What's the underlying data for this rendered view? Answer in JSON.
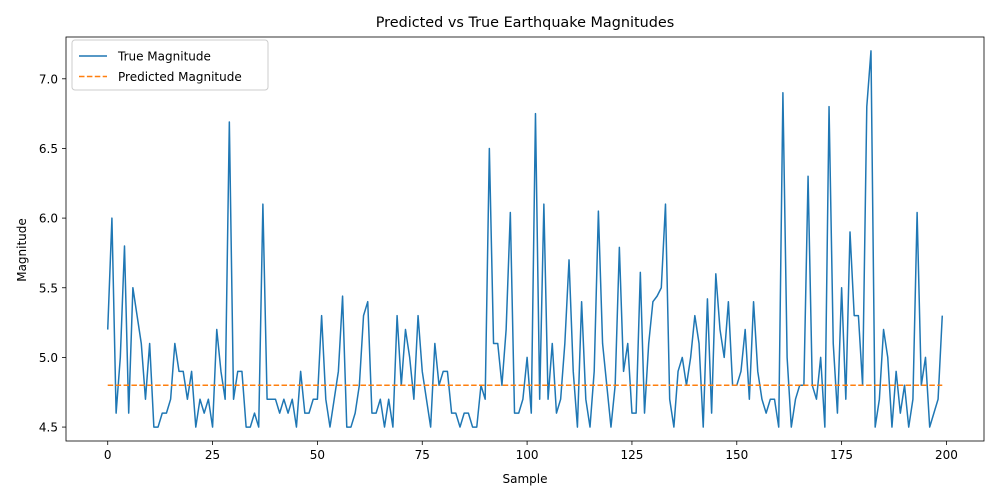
{
  "chart_data": {
    "type": "line",
    "title": "Predicted vs True Earthquake Magnitudes",
    "xlabel": "Sample",
    "ylabel": "Magnitude",
    "xlim": [
      -9.95,
      208.95
    ],
    "ylim": [
      4.4,
      7.3
    ],
    "xticks": [
      0,
      25,
      50,
      75,
      100,
      125,
      150,
      175,
      200
    ],
    "yticks": [
      4.5,
      5.0,
      5.5,
      6.0,
      6.5,
      7.0
    ],
    "xtick_labels": [
      "0",
      "25",
      "50",
      "75",
      "100",
      "125",
      "150",
      "175",
      "200"
    ],
    "ytick_labels": [
      "4.5",
      "5.0",
      "5.5",
      "6.0",
      "6.5",
      "7.0"
    ],
    "grid": false,
    "legend_position": "top-left",
    "series": [
      {
        "name": "True Magnitude",
        "color": "#1f77b4",
        "style": "solid",
        "values": [
          5.2,
          6.0,
          4.6,
          5.0,
          5.8,
          4.6,
          5.5,
          5.3,
          5.1,
          4.7,
          5.1,
          4.5,
          4.5,
          4.6,
          4.6,
          4.7,
          5.1,
          4.9,
          4.9,
          4.7,
          4.9,
          4.5,
          4.7,
          4.6,
          4.7,
          4.5,
          5.2,
          4.9,
          4.7,
          6.69,
          4.7,
          4.9,
          4.9,
          4.5,
          4.5,
          4.6,
          4.5,
          6.1,
          4.7,
          4.7,
          4.7,
          4.6,
          4.7,
          4.6,
          4.7,
          4.5,
          4.9,
          4.6,
          4.6,
          4.7,
          4.7,
          5.3,
          4.7,
          4.5,
          4.7,
          4.9,
          5.44,
          4.5,
          4.5,
          4.6,
          4.8,
          5.3,
          5.4,
          4.6,
          4.6,
          4.7,
          4.5,
          4.7,
          4.5,
          5.3,
          4.8,
          5.2,
          5.0,
          4.7,
          5.3,
          4.9,
          4.7,
          4.5,
          5.1,
          4.8,
          4.9,
          4.9,
          4.6,
          4.6,
          4.5,
          4.6,
          4.6,
          4.5,
          4.5,
          4.8,
          4.7,
          6.5,
          5.1,
          5.1,
          4.8,
          5.2,
          6.04,
          4.6,
          4.6,
          4.7,
          5.0,
          4.6,
          6.75,
          4.7,
          6.1,
          4.7,
          5.1,
          4.6,
          4.7,
          5.1,
          5.7,
          4.9,
          4.5,
          5.4,
          4.7,
          4.5,
          4.9,
          6.05,
          5.1,
          4.8,
          4.5,
          4.8,
          5.79,
          4.9,
          5.1,
          4.6,
          4.6,
          5.61,
          4.6,
          5.1,
          5.4,
          5.44,
          5.5,
          6.1,
          4.7,
          4.5,
          4.9,
          5.0,
          4.8,
          5.0,
          5.3,
          5.1,
          4.5,
          5.42,
          4.6,
          5.6,
          5.2,
          5.0,
          5.4,
          4.8,
          4.8,
          4.9,
          5.2,
          4.7,
          5.4,
          4.9,
          4.7,
          4.6,
          4.7,
          4.7,
          4.5,
          6.9,
          5.0,
          4.5,
          4.7,
          4.8,
          4.8,
          6.3,
          4.8,
          4.7,
          5.0,
          4.5,
          6.8,
          5.1,
          4.6,
          5.5,
          4.7,
          5.9,
          5.3,
          5.3,
          4.8,
          6.8,
          7.2,
          4.5,
          4.7,
          5.2,
          5.0,
          4.5,
          4.9,
          4.6,
          4.8,
          4.5,
          4.7,
          6.04,
          4.8,
          5.0,
          4.5,
          4.6,
          4.7,
          5.3
        ]
      },
      {
        "name": "Predicted Magnitude",
        "color": "#ff7f0e",
        "style": "dashed",
        "constant": 4.8,
        "x_range": [
          0,
          199
        ]
      }
    ]
  }
}
